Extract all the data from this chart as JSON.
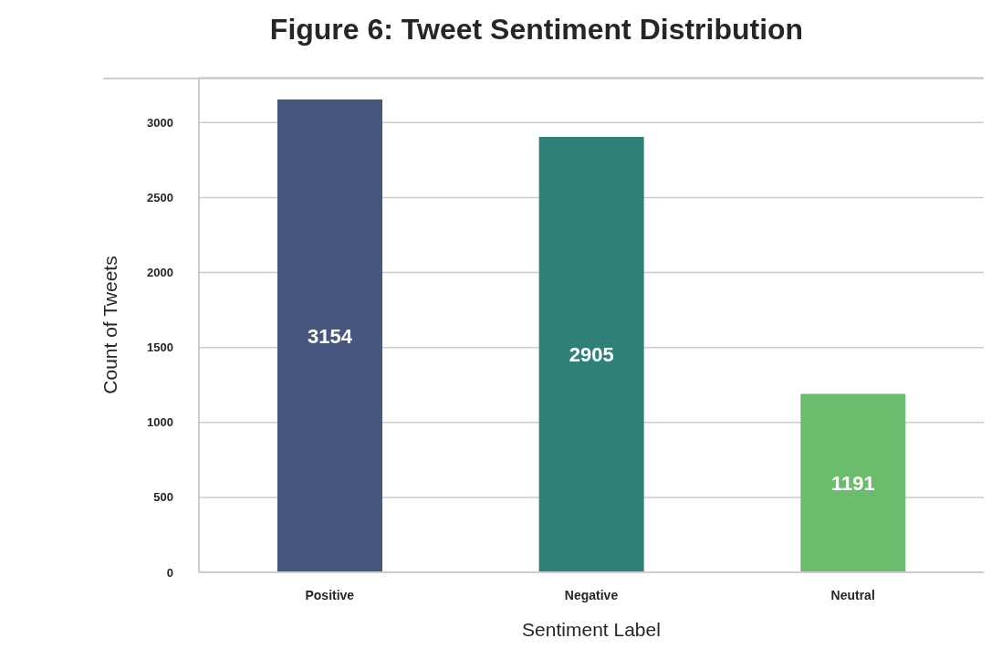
{
  "chart_data": {
    "type": "bar",
    "title": "Figure 6: Tweet Sentiment Distribution",
    "xlabel": "Sentiment Label",
    "ylabel": "Count of Tweets",
    "categories": [
      "Positive",
      "Negative",
      "Neutral"
    ],
    "values": [
      3154,
      2905,
      1191
    ],
    "colors": [
      "#46567f",
      "#2e8078",
      "#6bbd6d"
    ],
    "ylim": [
      0,
      3300
    ],
    "yticks": [
      0,
      500,
      1000,
      1500,
      2000,
      2500,
      3000
    ],
    "grid": "y",
    "data_labels": true,
    "legend": false
  }
}
